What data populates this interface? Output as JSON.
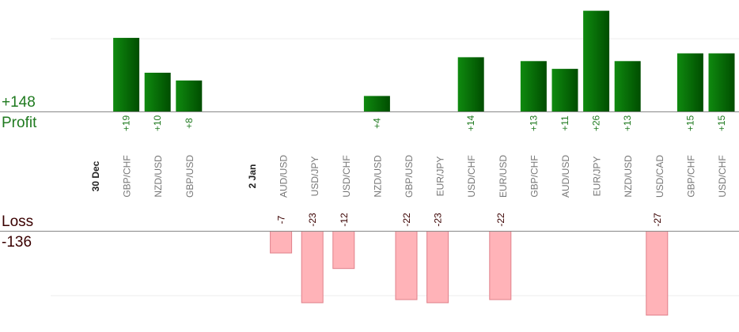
{
  "summary": {
    "profit_total": "+148",
    "profit_label": "Profit",
    "loss_label": "Loss",
    "loss_total": "-136"
  },
  "colors": {
    "profit_bar_dark": "#004d00",
    "profit_bar_light": "#0f8a0f",
    "profit_text": "#1f7a1f",
    "loss_bar": "#ffb3b8",
    "loss_bar_border": "#e0808a",
    "loss_text": "#3a0000",
    "axis": "#888888",
    "grid": "#eeeeee",
    "category_text": "#777777",
    "date_text": "#222222"
  },
  "chart_data": {
    "type": "bar",
    "profit_scale_max": 30,
    "loss_scale_max": 30,
    "items": [
      {
        "kind": "date",
        "label": "30 Dec"
      },
      {
        "kind": "trade",
        "pair": "GBP/CHF",
        "value": 19,
        "label": "+19"
      },
      {
        "kind": "trade",
        "pair": "NZD/USD",
        "value": 10,
        "label": "+10"
      },
      {
        "kind": "trade",
        "pair": "GBP/USD",
        "value": 8,
        "label": "+8"
      },
      {
        "kind": "spacer"
      },
      {
        "kind": "date",
        "label": "2 Jan"
      },
      {
        "kind": "trade",
        "pair": "AUD/USD",
        "value": -7,
        "label": "-7"
      },
      {
        "kind": "trade",
        "pair": "USD/JPY",
        "value": -23,
        "label": "-23"
      },
      {
        "kind": "trade",
        "pair": "USD/CHF",
        "value": -12,
        "label": "-12"
      },
      {
        "kind": "trade",
        "pair": "NZD/USD",
        "value": 4,
        "label": "+4"
      },
      {
        "kind": "trade",
        "pair": "GBP/USD",
        "value": -22,
        "label": "-22"
      },
      {
        "kind": "trade",
        "pair": "EUR/JPY",
        "value": -23,
        "label": "-23"
      },
      {
        "kind": "trade",
        "pair": "USD/CHF",
        "value": 14,
        "label": "+14"
      },
      {
        "kind": "trade",
        "pair": "EUR/USD",
        "value": -22,
        "label": "-22"
      },
      {
        "kind": "trade",
        "pair": "GBP/CHF",
        "value": 13,
        "label": "+13"
      },
      {
        "kind": "trade",
        "pair": "AUD/USD",
        "value": 11,
        "label": "+11"
      },
      {
        "kind": "trade",
        "pair": "EUR/JPY",
        "value": 26,
        "label": "+26"
      },
      {
        "kind": "trade",
        "pair": "NZD/USD",
        "value": 13,
        "label": "+13"
      },
      {
        "kind": "trade",
        "pair": "USD/CAD",
        "value": -27,
        "label": "-27"
      },
      {
        "kind": "trade",
        "pair": "GBP/CHF",
        "value": 15,
        "label": "+15"
      },
      {
        "kind": "trade",
        "pair": "USD/CHF",
        "value": 15,
        "label": "+15"
      }
    ]
  }
}
